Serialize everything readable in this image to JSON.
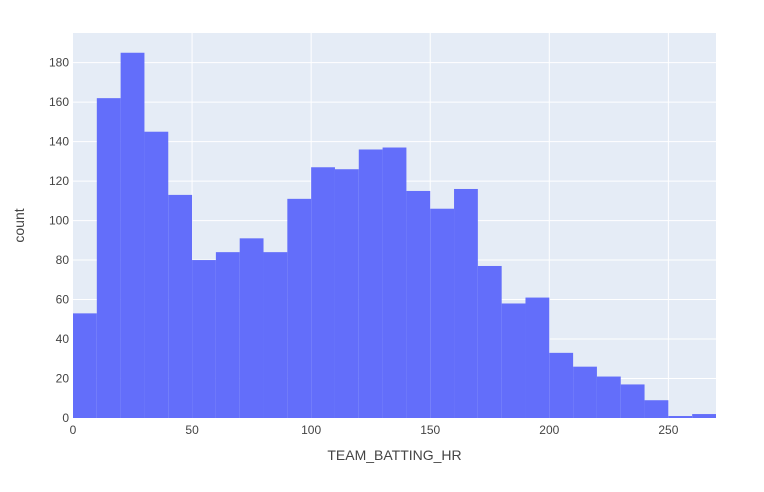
{
  "chart_data": {
    "type": "bar",
    "subtype": "histogram",
    "xlabel": "TEAM_BATTING_HR",
    "ylabel": "count",
    "bin_width": 10,
    "bins": [
      {
        "start": 0,
        "end": 10,
        "count": 53
      },
      {
        "start": 10,
        "end": 20,
        "count": 162
      },
      {
        "start": 20,
        "end": 30,
        "count": 185
      },
      {
        "start": 30,
        "end": 40,
        "count": 145
      },
      {
        "start": 40,
        "end": 50,
        "count": 113
      },
      {
        "start": 50,
        "end": 60,
        "count": 80
      },
      {
        "start": 60,
        "end": 70,
        "count": 84
      },
      {
        "start": 70,
        "end": 80,
        "count": 91
      },
      {
        "start": 80,
        "end": 90,
        "count": 84
      },
      {
        "start": 90,
        "end": 100,
        "count": 111
      },
      {
        "start": 100,
        "end": 110,
        "count": 127
      },
      {
        "start": 110,
        "end": 120,
        "count": 126
      },
      {
        "start": 120,
        "end": 130,
        "count": 136
      },
      {
        "start": 130,
        "end": 140,
        "count": 137
      },
      {
        "start": 140,
        "end": 150,
        "count": 115
      },
      {
        "start": 150,
        "end": 160,
        "count": 106
      },
      {
        "start": 160,
        "end": 170,
        "count": 116
      },
      {
        "start": 170,
        "end": 180,
        "count": 77
      },
      {
        "start": 180,
        "end": 190,
        "count": 58
      },
      {
        "start": 190,
        "end": 200,
        "count": 61
      },
      {
        "start": 200,
        "end": 210,
        "count": 33
      },
      {
        "start": 210,
        "end": 220,
        "count": 26
      },
      {
        "start": 220,
        "end": 230,
        "count": 21
      },
      {
        "start": 230,
        "end": 240,
        "count": 17
      },
      {
        "start": 240,
        "end": 250,
        "count": 9
      },
      {
        "start": 250,
        "end": 260,
        "count": 1
      },
      {
        "start": 260,
        "end": 270,
        "count": 2
      }
    ],
    "xlim": [
      0,
      270
    ],
    "ylim": [
      0,
      195
    ],
    "x_ticks": [
      0,
      50,
      100,
      150,
      200,
      250
    ],
    "y_ticks": [
      0,
      20,
      40,
      60,
      80,
      100,
      120,
      140,
      160,
      180
    ],
    "grid": true,
    "colors": {
      "bar": "#636efa",
      "plot_background": "#e5ecf6",
      "grid": "#ffffff",
      "text": "#444444"
    }
  }
}
